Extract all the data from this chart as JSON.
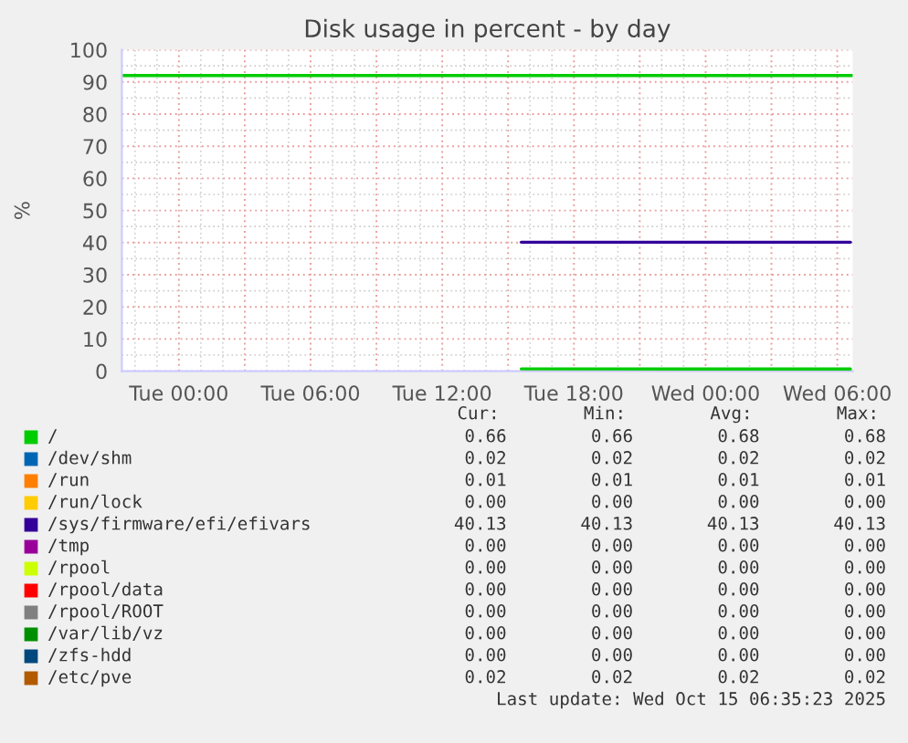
{
  "chart_data": {
    "type": "line",
    "title": "Disk usage in percent - by day",
    "ylabel": "%",
    "x": [
      "2025-10-14T15:36",
      "2025-10-15T06:36"
    ],
    "xlim": [
      "2025-10-13T21:24",
      "2025-10-15T06:42"
    ],
    "xticks": [
      {
        "value": "2025-10-14T00:00",
        "label": "Tue 00:00"
      },
      {
        "value": "2025-10-14T06:00",
        "label": "Tue 06:00"
      },
      {
        "value": "2025-10-14T12:00",
        "label": "Tue 12:00"
      },
      {
        "value": "2025-10-14T18:00",
        "label": "Tue 18:00"
      },
      {
        "value": "2025-10-15T00:00",
        "label": "Wed 00:00"
      },
      {
        "value": "2025-10-15T06:00",
        "label": "Wed 06:00"
      }
    ],
    "ylim": [
      0,
      100
    ],
    "yticks": [
      0,
      10,
      20,
      30,
      40,
      50,
      60,
      70,
      80,
      90,
      100
    ],
    "grid": true,
    "legend": "bottom",
    "line_style": "solid",
    "ref_lines": [
      {
        "axis": "y",
        "value": 92,
        "color": "#00cc00"
      }
    ],
    "series": [
      {
        "name": "/",
        "color": "#00cc00",
        "values": [
          0.68,
          0.66
        ]
      },
      {
        "name": "/dev/shm",
        "color": "#0066b3",
        "values": [
          null,
          null
        ]
      },
      {
        "name": "/run",
        "color": "#ff8000",
        "values": [
          null,
          null
        ]
      },
      {
        "name": "/run/lock",
        "color": "#ffcc00",
        "values": [
          null,
          null
        ]
      },
      {
        "name": "/sys/firmware/efi/efivars",
        "color": "#330099",
        "values": [
          40.13,
          40.13
        ]
      },
      {
        "name": "/tmp",
        "color": "#990099",
        "values": [
          null,
          null
        ]
      },
      {
        "name": "/rpool",
        "color": "#ccff00",
        "values": [
          null,
          null
        ]
      },
      {
        "name": "/rpool/data",
        "color": "#ff0000",
        "values": [
          null,
          null
        ]
      },
      {
        "name": "/rpool/ROOT",
        "color": "#808080",
        "values": [
          null,
          null
        ]
      },
      {
        "name": "/var/lib/vz",
        "color": "#008f00",
        "values": [
          null,
          null
        ]
      },
      {
        "name": "/zfs-hdd",
        "color": "#00487d",
        "values": [
          null,
          null
        ]
      },
      {
        "name": "/etc/pve",
        "color": "#b35a00",
        "values": [
          null,
          null
        ]
      }
    ],
    "annotations": [
      "Cur:        Min:        Avg:        Max:",
      "0.66        0.66        0.68        0.68",
      "0.02        0.02        0.02        0.02",
      "0.01        0.01        0.01        0.01",
      "0.00        0.00        0.00        0.00",
      "40.13       40.13       40.13       40.13",
      "0.00        0.00        0.00        0.00",
      "0.00        0.00        0.00        0.00",
      "0.00        0.00        0.00        0.00",
      "0.00        0.00        0.00        0.00",
      "0.00        0.00        0.00        0.00",
      "0.00        0.00        0.00        0.00",
      "0.02        0.02        0.02        0.02",
      "Last update: Wed Oct 15 06:35:23 2025"
    ]
  }
}
